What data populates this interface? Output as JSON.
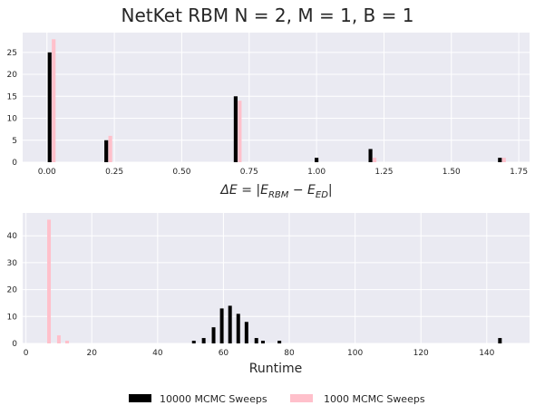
{
  "figure": {
    "title": "NetKet RBM N = 2, M = 1, B = 1"
  },
  "legend": {
    "placement": "bottom-center",
    "entries": [
      {
        "label": "10000 MCMC Sweeps",
        "color": "#000000"
      },
      {
        "label": "1000 MCMC Sweeps",
        "color": "#ffc0cb"
      }
    ]
  },
  "chart_data": [
    {
      "type": "bar",
      "subtype": "histogram",
      "xlabel_parts": {
        "main": "ΔE = |E",
        "sub1": "RBM",
        "mid": " − E",
        "sub2": "ED",
        "end": "|"
      },
      "xlim": [
        -0.09,
        1.79
      ],
      "ylim": [
        0,
        29.5
      ],
      "xticks": [
        0.0,
        0.25,
        0.5,
        0.75,
        1.0,
        1.25,
        1.5,
        1.75
      ],
      "xtick_labels": [
        "0.00",
        "0.25",
        "0.50",
        "0.75",
        "1.00",
        "1.25",
        "1.50",
        "1.75"
      ],
      "yticks": [
        0,
        5,
        10,
        15,
        20,
        25
      ],
      "ytick_labels": [
        "0",
        "5",
        "10",
        "15",
        "20",
        "25"
      ],
      "grid": true,
      "bar_width": 0.014,
      "series": [
        {
          "name": "10000 MCMC Sweeps",
          "color": "#000000",
          "x": [
            0.01,
            0.22,
            0.7,
            1.0,
            1.2,
            1.68
          ],
          "values": [
            25,
            5,
            15,
            1,
            3,
            1
          ]
        },
        {
          "name": "1000 MCMC Sweeps",
          "color": "#ffc0cb",
          "x": [
            0.025,
            0.235,
            0.715,
            1.215,
            1.695
          ],
          "values": [
            28,
            6,
            14,
            1,
            1
          ]
        }
      ]
    },
    {
      "type": "bar",
      "subtype": "histogram",
      "xlabel": "Runtime",
      "xlim": [
        -1,
        153
      ],
      "ylim": [
        0,
        48.5
      ],
      "xticks": [
        0,
        20,
        40,
        60,
        80,
        100,
        120,
        140
      ],
      "xtick_labels": [
        "0",
        "20",
        "40",
        "60",
        "80",
        "100",
        "120",
        "140"
      ],
      "yticks": [
        0,
        10,
        20,
        30,
        40
      ],
      "ytick_labels": [
        "0",
        "10",
        "20",
        "30",
        "40"
      ],
      "grid": true,
      "bar_width": 1.1,
      "series": [
        {
          "name": "10000 MCMC Sweeps",
          "color": "#000000",
          "x": [
            51,
            54,
            57,
            59.5,
            62,
            64.5,
            67,
            70,
            72,
            77,
            144
          ],
          "values": [
            1,
            2,
            6,
            13,
            14,
            11,
            8,
            2,
            1,
            1,
            2
          ]
        },
        {
          "name": "1000 MCMC Sweeps",
          "color": "#ffc0cb",
          "x": [
            7,
            10,
            12.5
          ],
          "values": [
            46,
            3,
            1
          ]
        }
      ]
    }
  ]
}
